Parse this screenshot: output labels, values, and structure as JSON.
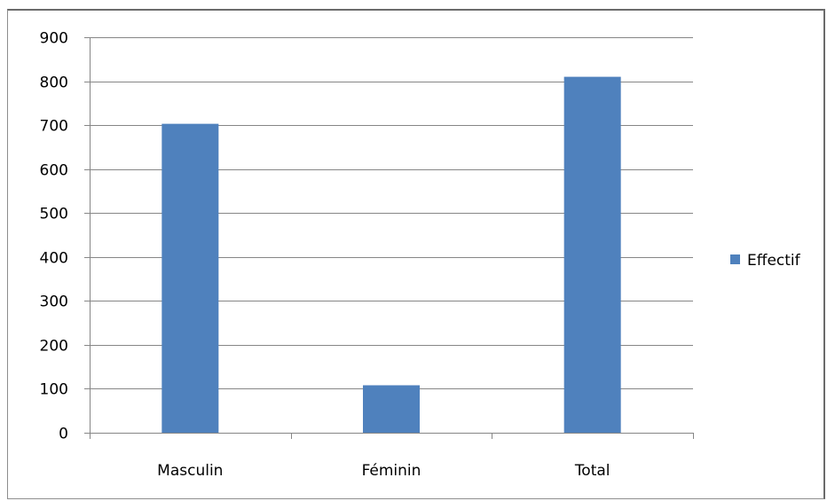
{
  "chart_data": {
    "type": "bar",
    "categories": [
      "Masculin",
      "Féminin",
      "Total"
    ],
    "series": [
      {
        "name": "Effectif",
        "values": [
          703,
          108,
          810
        ],
        "color": "#4f81bd"
      }
    ],
    "ylim": [
      0,
      900
    ],
    "yticks": [
      0,
      100,
      200,
      300,
      400,
      500,
      600,
      700,
      800,
      900
    ],
    "grid": true,
    "legend_position": "right",
    "title": "",
    "xlabel": "",
    "ylabel": ""
  }
}
